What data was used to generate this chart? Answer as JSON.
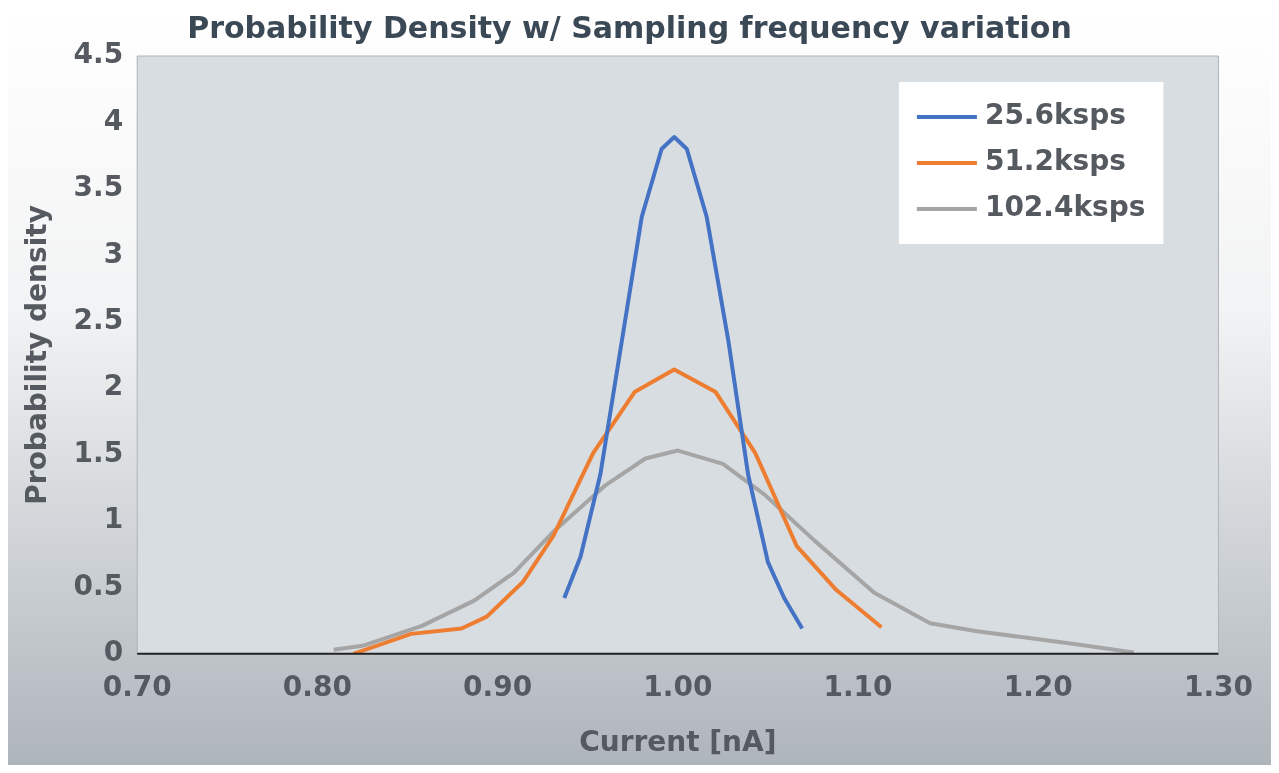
{
  "chart_data": {
    "type": "line",
    "title": "Probability Density w/ Sampling frequency variation",
    "xlabel": "Current [nA]",
    "ylabel": "Probability density",
    "xlim": [
      0.7,
      1.3
    ],
    "xticks": [
      {
        "value": 0.7,
        "label": "0.70"
      },
      {
        "value": 0.8,
        "label": "0.80"
      },
      {
        "value": 0.9,
        "label": "0.90"
      },
      {
        "value": 1.0,
        "label": "1.00"
      },
      {
        "value": 1.1,
        "label": "1.10"
      },
      {
        "value": 1.2,
        "label": "1.20"
      },
      {
        "value": 1.3,
        "label": "1.30"
      }
    ],
    "ylim": [
      0,
      4.5
    ],
    "yticks": [
      0,
      0.5,
      1,
      1.5,
      2,
      2.5,
      3,
      3.5,
      4,
      4.5
    ],
    "grid": false,
    "legend": "top right",
    "marker": "none",
    "line_style": "solid",
    "series": [
      {
        "name": "25.6ksps",
        "color": "#4472c4",
        "x": [
          0.937,
          0.946,
          0.957,
          0.969,
          0.98,
          0.991,
          0.998,
          1.005,
          1.016,
          1.028,
          1.039,
          1.05,
          1.059,
          1.069
        ],
        "values": [
          0.42,
          0.73,
          1.35,
          2.36,
          3.29,
          3.8,
          3.89,
          3.8,
          3.29,
          2.36,
          1.35,
          0.69,
          0.42,
          0.19
        ]
      },
      {
        "name": "51.2ksps",
        "color": "#ed7d31",
        "x": [
          0.82,
          0.852,
          0.88,
          0.894,
          0.914,
          0.931,
          0.953,
          0.976,
          0.998,
          1.021,
          1.043,
          1.066,
          1.088,
          1.113
        ],
        "values": [
          0,
          0.15,
          0.19,
          0.28,
          0.54,
          0.89,
          1.51,
          1.97,
          2.14,
          1.97,
          1.51,
          0.81,
          0.48,
          0.2
        ]
      },
      {
        "name": "102.4ksps",
        "color": "#a5a5a5",
        "x": [
          0.809,
          0.825,
          0.858,
          0.887,
          0.909,
          0.931,
          0.96,
          0.982,
          1.0,
          1.025,
          1.048,
          1.076,
          1.109,
          1.14,
          1.166,
          1.222,
          1.253
        ],
        "values": [
          0.03,
          0.06,
          0.21,
          0.4,
          0.61,
          0.92,
          1.27,
          1.47,
          1.53,
          1.43,
          1.2,
          0.85,
          0.46,
          0.23,
          0.17,
          0.07,
          0.01
        ]
      }
    ]
  }
}
